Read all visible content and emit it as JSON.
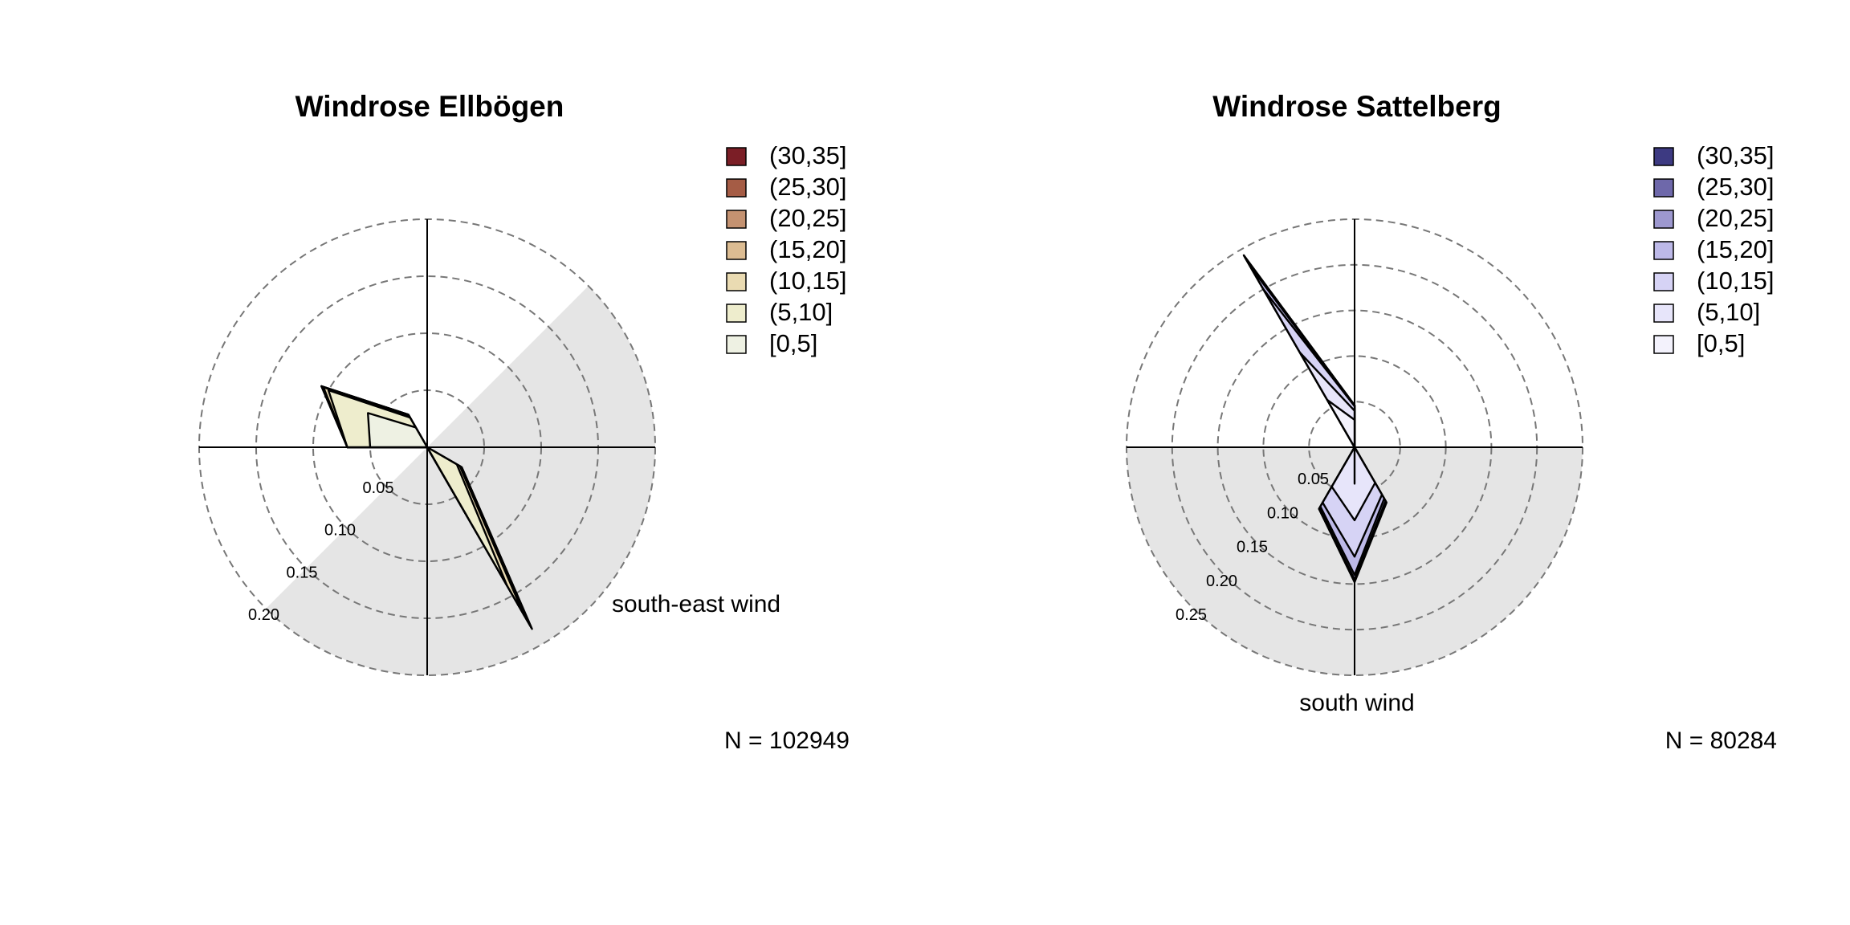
{
  "chart_data": [
    {
      "type": "windrose",
      "title": "Windrose Ellbögen",
      "ring_labels": [
        "0.05",
        "0.10",
        "0.15",
        "0.20"
      ],
      "ring_values": [
        0.05,
        0.1,
        0.15,
        0.2
      ],
      "rmax": 0.2,
      "highlight_sector_deg": [
        45,
        225
      ],
      "annotation": "south-east wind",
      "n_label": "N = 102949",
      "legend": [
        {
          "label": "(30,35]",
          "color": "#7b1e26"
        },
        {
          "label": "(25,30]",
          "color": "#a55c45"
        },
        {
          "label": "(20,25]",
          "color": "#c49271"
        },
        {
          "label": "(15,20]",
          "color": "#dcbc92"
        },
        {
          "label": "(10,15]",
          "color": "#eadbb2"
        },
        {
          "label": "(5,10]",
          "color": "#eeedcd"
        },
        {
          "label": "[0,5]",
          "color": "#eef1e3"
        }
      ],
      "directions_deg": [
        0,
        30,
        60,
        90,
        120,
        150,
        180,
        210,
        240,
        270,
        300,
        330
      ],
      "series": [
        {
          "name": "[0,5]",
          "values": [
            0.0,
            0.0,
            0.0,
            0.0,
            0.0,
            0.07,
            0.0,
            0.0,
            0.0,
            0.05,
            0.06,
            0.02
          ]
        },
        {
          "name": "(5,10]",
          "values": [
            0.0,
            0.0,
            0.0,
            0.0,
            0.03,
            0.14,
            0.0,
            0.0,
            0.0,
            0.07,
            0.1,
            0.03
          ]
        },
        {
          "name": "(10,15]",
          "values": [
            0.0,
            0.0,
            0.0,
            0.0,
            0.033,
            0.17,
            0.0,
            0.0,
            0.0,
            0.07,
            0.105,
            0.032
          ]
        },
        {
          "name": "(15,20]",
          "values": [
            0.0,
            0.0,
            0.0,
            0.0,
            0.034,
            0.18,
            0.0,
            0.0,
            0.0,
            0.07,
            0.106,
            0.032
          ]
        },
        {
          "name": "(20,25]",
          "values": [
            0.0,
            0.0,
            0.0,
            0.0,
            0.035,
            0.182,
            0.0,
            0.0,
            0.0,
            0.07,
            0.107,
            0.033
          ]
        },
        {
          "name": "(25,30]",
          "values": [
            0.0,
            0.0,
            0.0,
            0.0,
            0.035,
            0.183,
            0.0,
            0.0,
            0.0,
            0.07,
            0.107,
            0.033
          ]
        },
        {
          "name": "(30,35]",
          "values": [
            0.0,
            0.0,
            0.0,
            0.0,
            0.035,
            0.184,
            0.0,
            0.0,
            0.0,
            0.07,
            0.107,
            0.033
          ]
        }
      ]
    },
    {
      "type": "windrose",
      "title": "Windrose Sattelberg",
      "ring_labels": [
        "0.05",
        "0.10",
        "0.15",
        "0.20",
        "0.25"
      ],
      "ring_values": [
        0.05,
        0.1,
        0.15,
        0.2,
        0.25
      ],
      "rmax": 0.25,
      "highlight_sector_deg": [
        90,
        270
      ],
      "annotation": "south wind",
      "n_label": "N = 80284",
      "legend": [
        {
          "label": "(30,35]",
          "color": "#3d3a82"
        },
        {
          "label": "(25,30]",
          "color": "#6e68aa"
        },
        {
          "label": "(20,25]",
          "color": "#9d98cf"
        },
        {
          "label": "(15,20]",
          "color": "#bdb9e8"
        },
        {
          "label": "(10,15]",
          "color": "#d6d3f5"
        },
        {
          "label": "(5,10]",
          "color": "#e7e5fa"
        },
        {
          "label": "[0,5]",
          "color": "#f3f2fc"
        }
      ],
      "directions_deg": [
        0,
        30,
        60,
        90,
        120,
        150,
        180,
        210,
        240,
        270,
        300,
        330
      ],
      "series": [
        {
          "name": "[0,5]",
          "values": [
            0.03,
            0.0,
            0.0,
            0.0,
            0.0,
            0.0,
            0.04,
            0.0,
            0.0,
            0.0,
            0.0,
            0.06
          ]
        },
        {
          "name": "(5,10]",
          "values": [
            0.04,
            0.0,
            0.0,
            0.0,
            0.0,
            0.045,
            0.08,
            0.05,
            0.0,
            0.0,
            0.0,
            0.12
          ]
        },
        {
          "name": "(10,15]",
          "values": [
            0.045,
            0.0,
            0.0,
            0.0,
            0.0,
            0.06,
            0.12,
            0.07,
            0.0,
            0.0,
            0.0,
            0.2
          ]
        },
        {
          "name": "(15,20]",
          "values": [
            0.045,
            0.0,
            0.0,
            0.0,
            0.0,
            0.065,
            0.14,
            0.075,
            0.0,
            0.0,
            0.0,
            0.23
          ]
        },
        {
          "name": "(20,25]",
          "values": [
            0.046,
            0.0,
            0.0,
            0.0,
            0.0,
            0.068,
            0.145,
            0.077,
            0.0,
            0.0,
            0.0,
            0.24
          ]
        },
        {
          "name": "(25,30]",
          "values": [
            0.046,
            0.0,
            0.0,
            0.0,
            0.0,
            0.069,
            0.147,
            0.078,
            0.0,
            0.0,
            0.0,
            0.242
          ]
        },
        {
          "name": "(30,35]",
          "values": [
            0.046,
            0.0,
            0.0,
            0.0,
            0.0,
            0.07,
            0.148,
            0.078,
            0.0,
            0.0,
            0.0,
            0.243
          ]
        }
      ]
    }
  ]
}
